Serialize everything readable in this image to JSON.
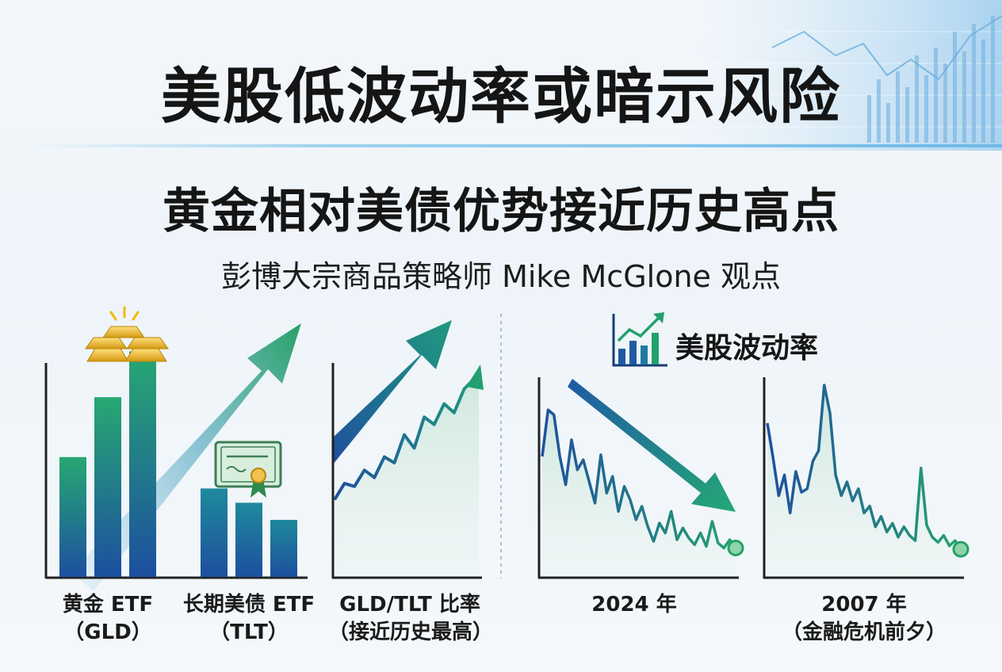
{
  "header": {
    "title": "美股低波动率或暗示风险",
    "subtitle": "黄金相对美债优势接近历史高点",
    "source": "彭博大宗商品策略师 Mike McGlone 观点"
  },
  "section_volatility": {
    "title": "美股波动率",
    "icon": "chart-growth-icon"
  },
  "labels": {
    "gld_1": "黄金 ETF",
    "gld_2": "（GLD）",
    "tlt_1": "长期美债 ETF",
    "tlt_2": "（TLT）",
    "ratio_1": "GLD/TLT 比率",
    "ratio_2": "（接近历史最高）",
    "y2024": "2024 年",
    "y2007_1": "2007 年",
    "y2007_2": "（金融危机前夕）"
  },
  "icons": [
    "gold-bars-icon",
    "bond-certificate-icon",
    "up-trend-arrow-icon",
    "down-trend-arrow-icon"
  ],
  "colors": {
    "blue": "#1f5fa6",
    "green": "#27a870",
    "teal": "#1f8a8a",
    "fill": "#dff0ea"
  },
  "chart_data": [
    {
      "type": "bar",
      "series": [
        {
          "name": "黄金 ETF（GLD）",
          "values": [
            0.42,
            0.63,
            0.79
          ],
          "trend": "up"
        },
        {
          "name": "长期美债 ETF（TLT）",
          "values": [
            0.31,
            0.26,
            0.2
          ],
          "trend": "down"
        }
      ]
    },
    {
      "type": "area",
      "title": "GLD/TLT 比率（接近历史最高）",
      "values": [
        0.18,
        0.29,
        0.27,
        0.38,
        0.33,
        0.47,
        0.43,
        0.62,
        0.53,
        0.74,
        0.69,
        0.83,
        0.77,
        0.93,
        1.0
      ],
      "trend": "up"
    },
    {
      "type": "line",
      "title": "美股波动率 2024 年",
      "values": [
        0.6,
        0.88,
        0.85,
        0.6,
        0.43,
        0.7,
        0.52,
        0.58,
        0.45,
        0.32,
        0.61,
        0.38,
        0.48,
        0.27,
        0.42,
        0.34,
        0.22,
        0.3,
        0.18,
        0.09,
        0.2,
        0.14,
        0.27,
        0.1,
        0.17,
        0.11,
        0.07,
        0.14,
        0.06,
        0.21,
        0.08,
        0.05,
        0.1,
        0.05
      ],
      "trend": "down"
    },
    {
      "type": "line",
      "title": "美股波动率 2007 年（金融危机前夕）",
      "values": [
        0.78,
        0.58,
        0.36,
        0.48,
        0.26,
        0.5,
        0.38,
        0.4,
        0.56,
        0.62,
        1.0,
        0.84,
        0.48,
        0.36,
        0.44,
        0.33,
        0.4,
        0.26,
        0.3,
        0.18,
        0.24,
        0.15,
        0.2,
        0.12,
        0.18,
        0.13,
        0.1,
        0.52,
        0.19,
        0.12,
        0.09,
        0.13,
        0.07,
        0.1,
        0.05
      ],
      "trend": "down"
    }
  ]
}
